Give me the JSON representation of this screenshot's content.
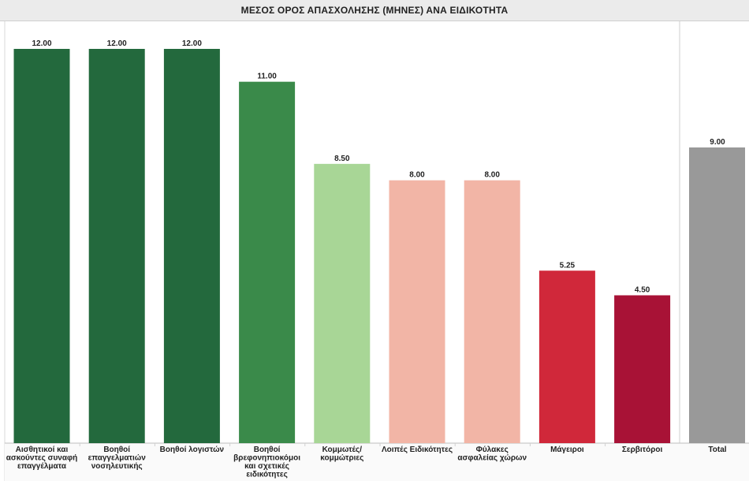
{
  "chart_data": {
    "type": "bar",
    "title": "ΜΕΣΟΣ ΟΡΟΣ ΑΠΑΣΧΟΛΗΣΗΣ (ΜΗΝΕΣ) ΑΝΑ ΕΙΔΙΚΟΤΗΤΑ",
    "categories": [
      "Αισθητικοί και ασκούντες συναφή επαγγέλματα",
      "Βοηθοί επαγγελματιών νοσηλευτικής",
      "Βοηθοί λογιστών",
      "Βοηθοί βρεφονηπιοκόμοι και σχετικές ειδικότητες",
      "Κομμωτές/ κομμώτριες",
      "Λοιπές Ειδικότητες",
      "Φύλακες ασφαλείας χώρων",
      "Μάγειροι",
      "Σερβιτόροι"
    ],
    "category_lines": [
      [
        "Αισθητικοί και",
        "ασκούντες συναφή",
        "επαγγέλματα"
      ],
      [
        "Βοηθοί",
        "επαγγελματιών",
        "νοσηλευτικής"
      ],
      [
        "Βοηθοί λογιστών"
      ],
      [
        "Βοηθοί",
        "βρεφονηπιοκόμοι",
        "και σχετικές",
        "ειδικότητες"
      ],
      [
        "Κομμωτές/",
        "κομμώτριες"
      ],
      [
        "Λοιπές Ειδικότητες"
      ],
      [
        "Φύλακες",
        "ασφαλείας χώρων"
      ],
      [
        "Μάγειροι"
      ],
      [
        "Σερβιτόροι"
      ]
    ],
    "values": [
      12.0,
      12.0,
      12.0,
      11.0,
      8.5,
      8.0,
      8.0,
      5.25,
      4.5
    ],
    "value_labels": [
      "12.00",
      "12.00",
      "12.00",
      "11.00",
      "8.50",
      "8.00",
      "8.00",
      "5.25",
      "4.50"
    ],
    "colors": [
      "#23693d",
      "#23693d",
      "#23693d",
      "#3a8a4a",
      "#a8d696",
      "#f2b5a6",
      "#f2b5a6",
      "#d0283a",
      "#a81236"
    ],
    "total": {
      "label": "Total",
      "value": 9.0,
      "value_label": "9.00",
      "color": "#999999"
    },
    "ylim": [
      0,
      12
    ],
    "grid": false,
    "xlabel": "",
    "ylabel": ""
  }
}
